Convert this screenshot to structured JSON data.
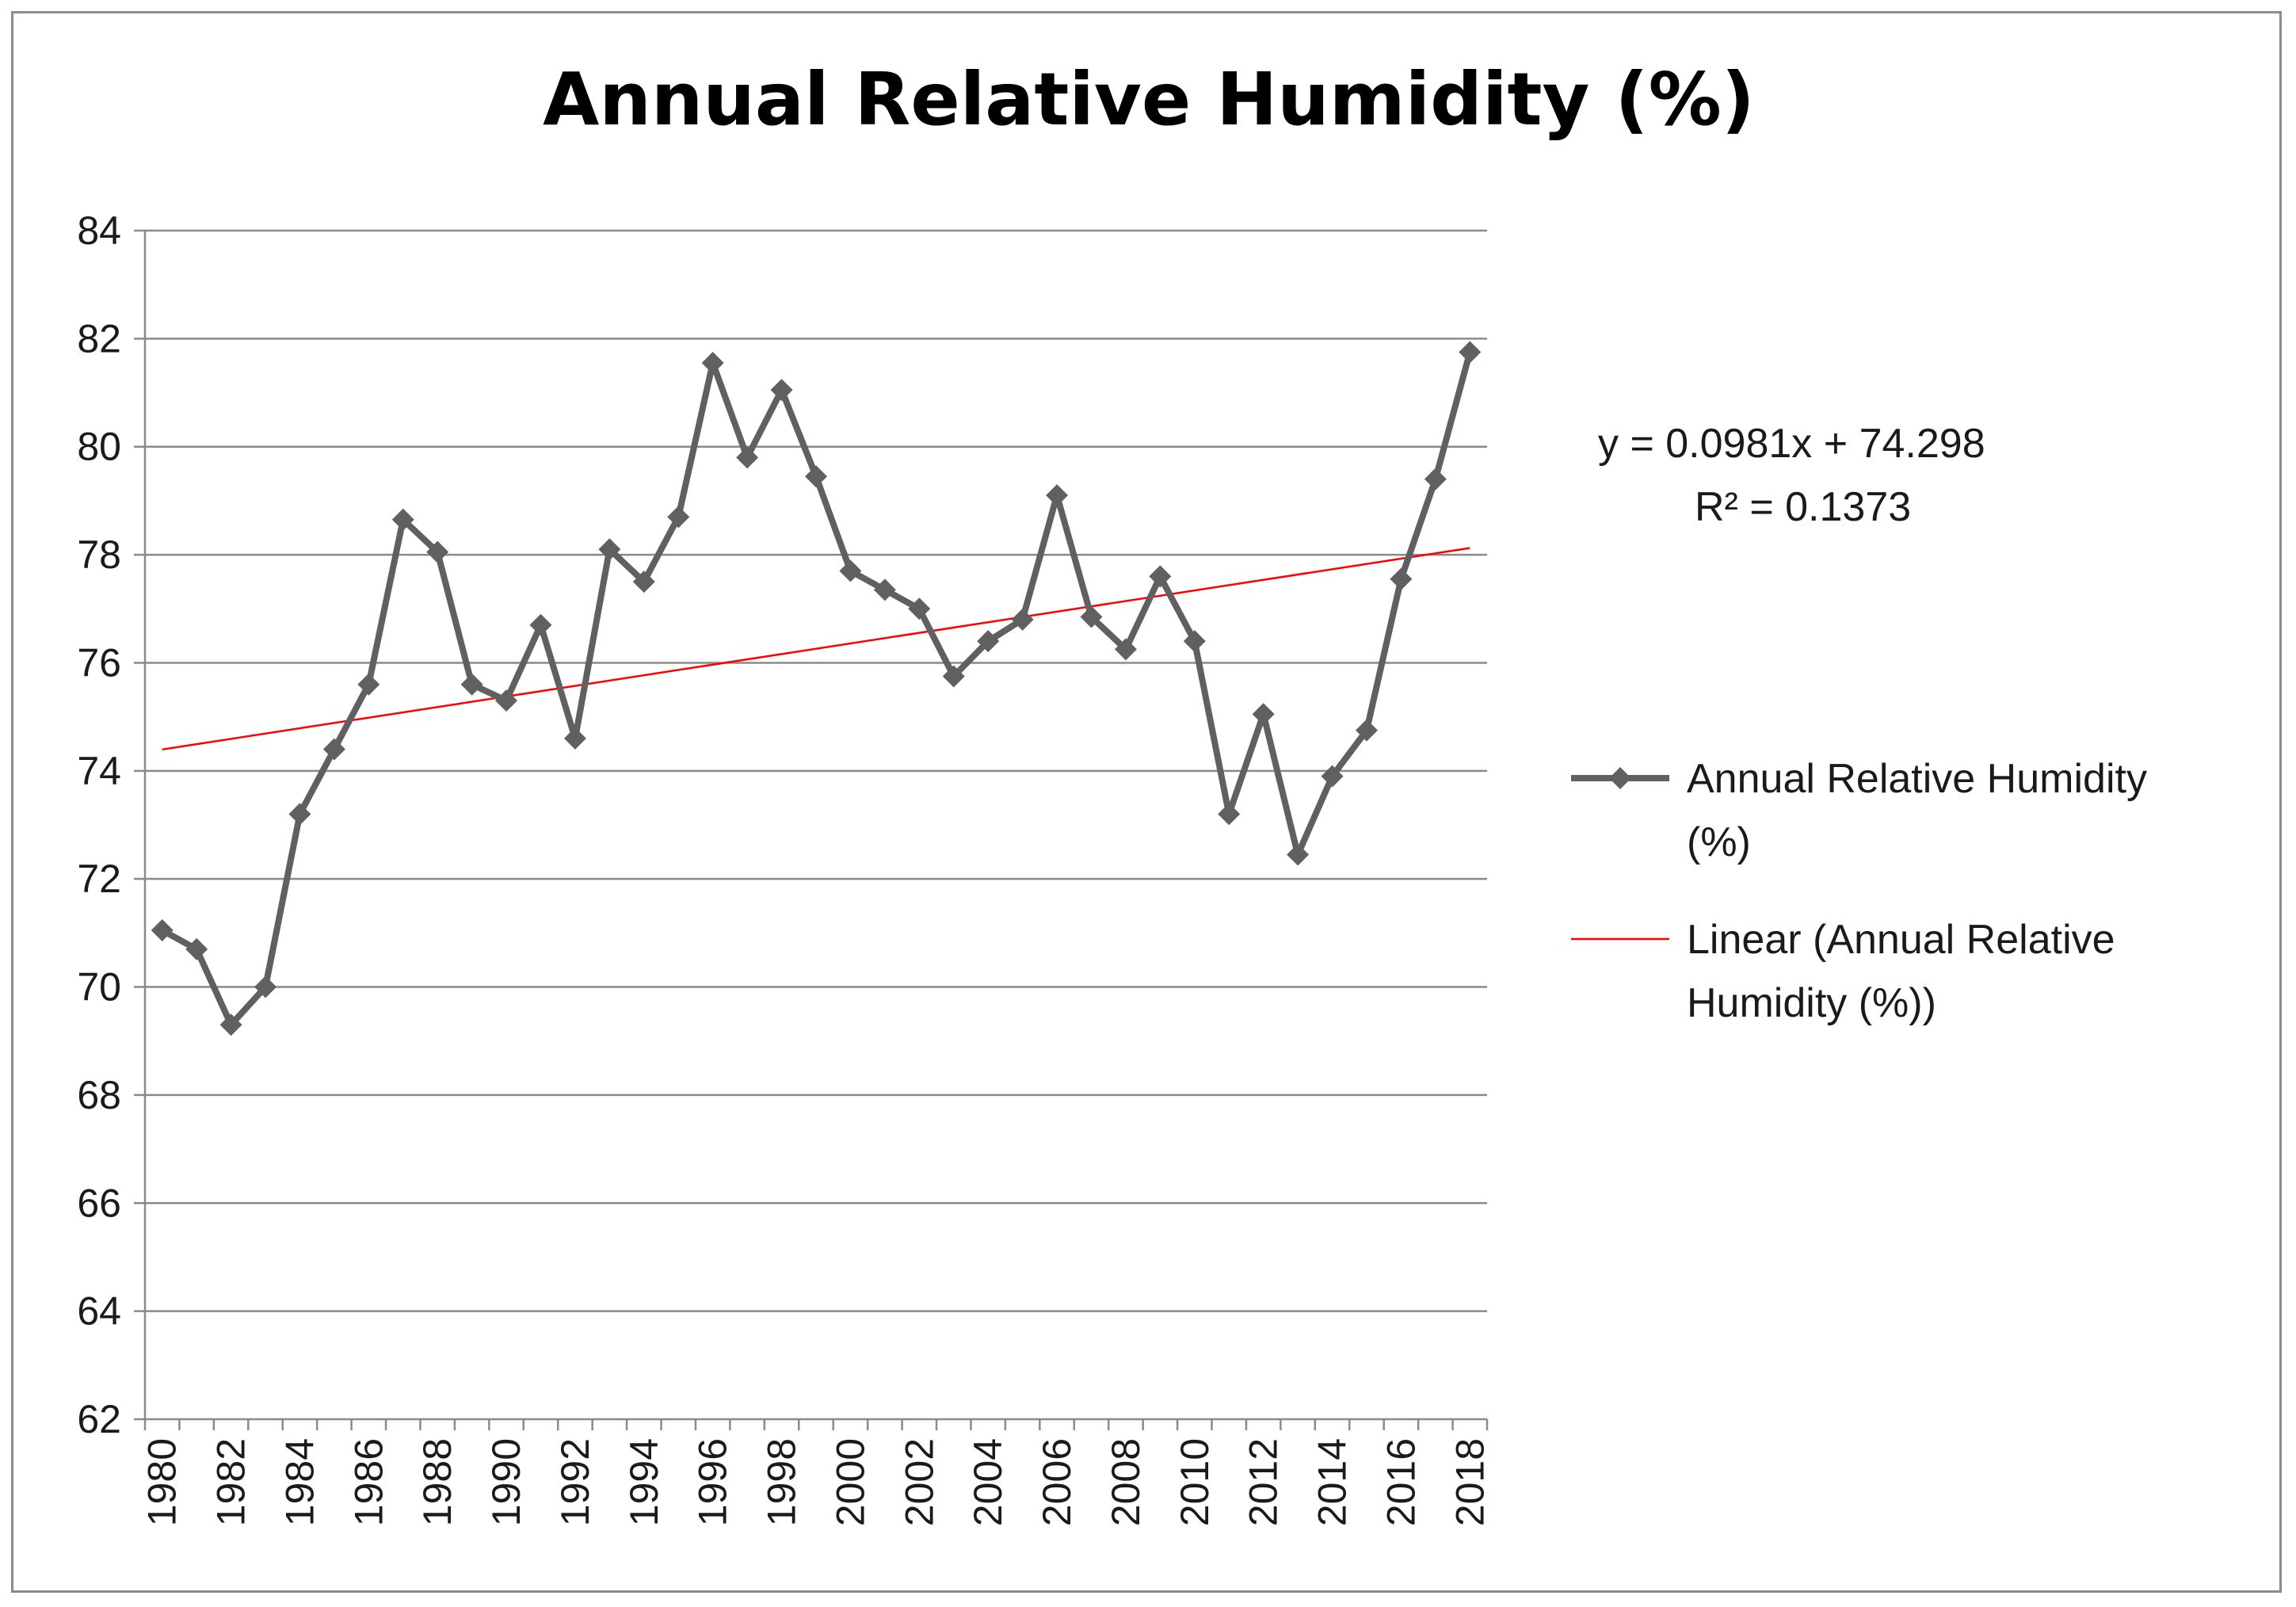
{
  "chart_data": {
    "type": "line",
    "title": "Annual Relative Humidity (%)",
    "xlabel": "",
    "ylabel": "",
    "ylim": [
      62,
      84
    ],
    "ytick_step": 2,
    "grid": true,
    "legend_position": "right",
    "x": [
      1980,
      1981,
      1982,
      1983,
      1984,
      1985,
      1986,
      1987,
      1988,
      1989,
      1990,
      1991,
      1992,
      1993,
      1994,
      1995,
      1996,
      1997,
      1998,
      1999,
      2000,
      2001,
      2002,
      2003,
      2004,
      2005,
      2006,
      2007,
      2008,
      2009,
      2010,
      2011,
      2012,
      2013,
      2014,
      2015,
      2016,
      2017,
      2018
    ],
    "x_tick_labels": [
      "1980",
      "1982",
      "1984",
      "1986",
      "1988",
      "1990",
      "1992",
      "1994",
      "1996",
      "1998",
      "2000",
      "2002",
      "2004",
      "2006",
      "2008",
      "2010",
      "2012",
      "2014",
      "2016",
      "2018"
    ],
    "series": [
      {
        "name": "Annual Relative Humidity (%)",
        "color": "#606060",
        "marker": "diamond",
        "values": [
          71.05,
          70.7,
          69.3,
          70.0,
          73.2,
          74.4,
          75.6,
          78.65,
          78.05,
          75.6,
          75.3,
          76.7,
          74.6,
          78.1,
          77.5,
          78.7,
          81.55,
          79.8,
          81.05,
          79.45,
          77.7,
          77.35,
          77.0,
          75.75,
          76.4,
          76.8,
          79.1,
          76.85,
          76.25,
          77.6,
          76.4,
          73.2,
          75.05,
          72.45,
          73.9,
          74.75,
          77.55,
          79.4,
          81.75
        ]
      }
    ],
    "trendline": {
      "name": "Linear (Annual Relative Humidity (%))",
      "color": "#ff0000",
      "slope": 0.0981,
      "intercept": 74.298,
      "equation_text": "y = 0.0981x + 74.298",
      "r2_text": "R² = 0.1373"
    },
    "legend": [
      {
        "label_lines": [
          "Annual Relative Humidity",
          "(%)"
        ],
        "color": "#606060",
        "marker": "diamond"
      },
      {
        "label_lines": [
          "Linear (Annual Relative",
          "Humidity (%))"
        ],
        "color": "#ff0000",
        "marker": "none"
      }
    ]
  }
}
